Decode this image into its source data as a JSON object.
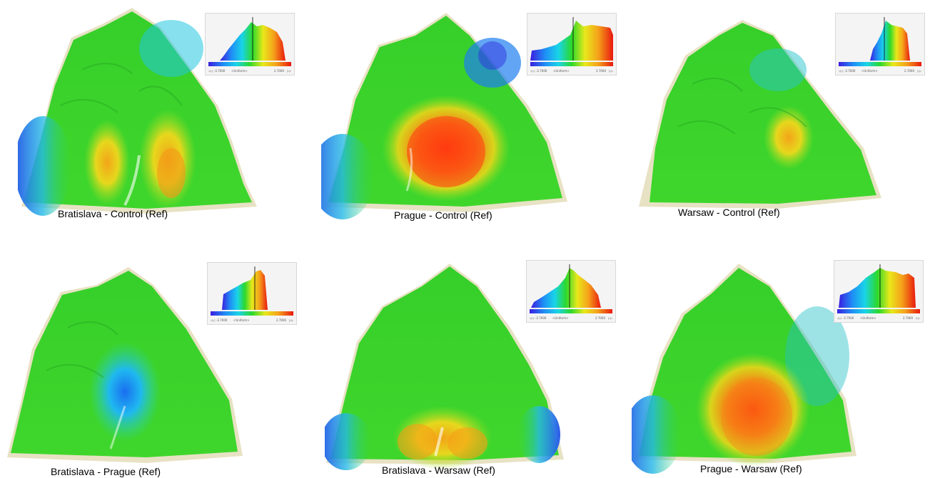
{
  "panels": [
    {
      "caption": "Bratislava - Control (Ref)",
      "hist_min": "-2.7000",
      "hist_max": "2.7000",
      "hist_mode": "<Uniform>"
    },
    {
      "caption": "Prague - Control (Ref)",
      "hist_min": "-2.7000",
      "hist_max": "2.7000",
      "hist_mode": "<Uniform>"
    },
    {
      "caption": "Warsaw - Control (Ref)",
      "hist_min": "-2.7000",
      "hist_max": "2.7000",
      "hist_mode": "<Uniform>"
    },
    {
      "caption": "Bratislava - Prague (Ref)",
      "hist_min": "-2.7000",
      "hist_max": "2.7000",
      "hist_mode": "<Uniform>"
    },
    {
      "caption": "Bratislava - Warsaw (Ref)",
      "hist_min": "-2.7000",
      "hist_max": "2.7000",
      "hist_mode": "<Uniform>"
    },
    {
      "caption": "Prague - Warsaw (Ref)",
      "hist_min": "-2.7000",
      "hist_max": "2.7000",
      "hist_mode": "<Uniform>"
    }
  ],
  "colors": {
    "base_green": "#3fd22a",
    "rim": "#e8e2c4",
    "scale": [
      "#3a1ee0",
      "#1f8ff5",
      "#19d4e8",
      "#2bd92b",
      "#e8e81a",
      "#f5a21a",
      "#e8180e"
    ]
  }
}
